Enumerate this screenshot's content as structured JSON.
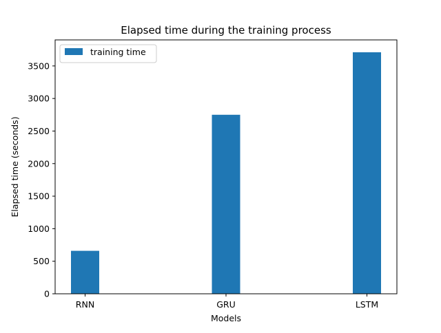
{
  "chart_data": {
    "type": "bar",
    "title": "Elapsed time during the training process",
    "xlabel": "Models",
    "ylabel": "Elapsed time (seconds)",
    "categories": [
      "RNN",
      "GRU",
      "LSTM"
    ],
    "series": [
      {
        "name": "training time",
        "values": [
          660,
          2750,
          3710
        ],
        "color": "#1f77b4"
      }
    ],
    "ylim": [
      0,
      3900
    ],
    "yticks": [
      0,
      500,
      1000,
      1500,
      2000,
      2500,
      3000,
      3500
    ],
    "grid": false,
    "legend_position": "top-left"
  }
}
